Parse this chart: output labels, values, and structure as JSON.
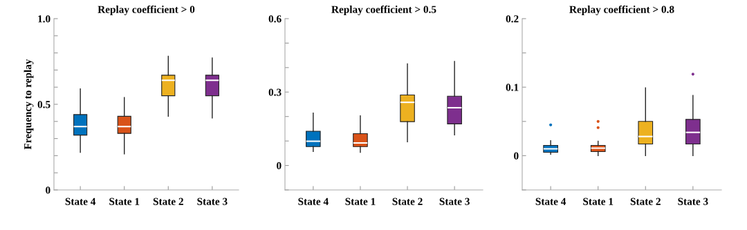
{
  "chart_data": [
    {
      "type": "box",
      "title": "Replay coefficient > 0",
      "ylabel": "Frequency to replay",
      "categories": [
        "State 4",
        "State 1",
        "State 2",
        "State 3"
      ],
      "colors": [
        "#0072bd",
        "#d95319",
        "#edb120",
        "#7e2f8e"
      ],
      "boxes": [
        {
          "low": 0.22,
          "q1": 0.32,
          "median": 0.37,
          "q3": 0.44,
          "high": 0.59
        },
        {
          "low": 0.21,
          "q1": 0.33,
          "median": 0.37,
          "q3": 0.43,
          "high": 0.54
        },
        {
          "low": 0.43,
          "q1": 0.55,
          "median": 0.64,
          "q3": 0.67,
          "high": 0.78
        },
        {
          "low": 0.42,
          "q1": 0.55,
          "median": 0.64,
          "q3": 0.67,
          "high": 0.77
        }
      ],
      "ylim": [
        0,
        1.0
      ],
      "yticks": [
        0,
        {
          "value": 0.1,
          "label": null
        },
        {
          "value": 0.2,
          "label": null
        },
        {
          "value": 0.3,
          "label": null
        },
        {
          "value": 0.4,
          "label": null
        },
        0.5,
        {
          "value": 0.6,
          "label": null
        },
        {
          "value": 0.7,
          "label": null
        },
        {
          "value": 0.8,
          "label": null
        },
        {
          "value": 0.9,
          "label": null
        },
        {
          "value": 1.0,
          "label": "1.0"
        }
      ],
      "grid": false,
      "legend": false
    },
    {
      "type": "box",
      "title": "Replay coefficient > 0.5",
      "categories": [
        "State 4",
        "State 1",
        "State 2",
        "State 3"
      ],
      "colors": [
        "#0072bd",
        "#d95319",
        "#edb120",
        "#7e2f8e"
      ],
      "boxes": [
        {
          "low": 0.057,
          "q1": 0.077,
          "median": 0.099,
          "q3": 0.14,
          "high": 0.214
        },
        {
          "low": 0.054,
          "q1": 0.077,
          "median": 0.092,
          "q3": 0.13,
          "high": 0.203
        },
        {
          "low": 0.097,
          "q1": 0.179,
          "median": 0.258,
          "q3": 0.288,
          "high": 0.415
        },
        {
          "low": 0.125,
          "q1": 0.17,
          "median": 0.236,
          "q3": 0.283,
          "high": 0.425
        }
      ],
      "ylim": [
        -0.1,
        0.6
      ],
      "yticks": [
        {
          "value": -0.1,
          "label": null
        },
        0,
        {
          "value": 0.1,
          "label": null
        },
        {
          "value": 0.2,
          "label": null
        },
        0.3,
        {
          "value": 0.4,
          "label": null
        },
        {
          "value": 0.5,
          "label": null
        },
        0.6
      ],
      "grid": false,
      "legend": false
    },
    {
      "type": "box",
      "title": "Replay coefficient > 0.8",
      "categories": [
        "State 4",
        "State 1",
        "State 2",
        "State 3"
      ],
      "colors": [
        "#0072bd",
        "#d95319",
        "#edb120",
        "#7e2f8e"
      ],
      "boxes": [
        {
          "low": 0.002,
          "q1": 0.005,
          "median": 0.01,
          "q3": 0.015,
          "high": 0.022,
          "outliers": [
            0.045
          ]
        },
        {
          "low": 0.0,
          "q1": 0.006,
          "median": 0.011,
          "q3": 0.015,
          "high": 0.021,
          "outliers": [
            0.041,
            0.05
          ]
        },
        {
          "low": 0.0,
          "q1": 0.017,
          "median": 0.028,
          "q3": 0.05,
          "high": 0.099
        },
        {
          "low": 0.0,
          "q1": 0.017,
          "median": 0.034,
          "q3": 0.053,
          "high": 0.088,
          "outliers": [
            0.119
          ]
        }
      ],
      "ylim": [
        -0.05,
        0.2
      ],
      "yticks": [
        {
          "value": -0.05,
          "label": null
        },
        0,
        {
          "value": 0.05,
          "label": null
        },
        0.1,
        {
          "value": 0.15,
          "label": null
        },
        0.2
      ],
      "grid": false,
      "legend": false
    }
  ]
}
